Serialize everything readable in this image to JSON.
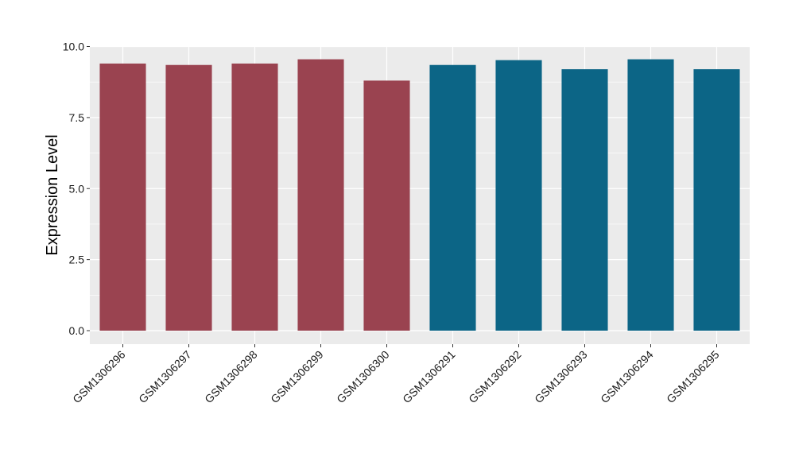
{
  "chart_data": {
    "type": "bar",
    "title": "",
    "xlabel": "",
    "ylabel": "Expression Level",
    "ylim": [
      0,
      10
    ],
    "y_ticks": [
      "0.0",
      "2.5",
      "5.0",
      "7.5",
      "10.0"
    ],
    "y_tick_values": [
      0,
      2.5,
      5,
      7.5,
      10
    ],
    "grid": true,
    "legend": "none",
    "categories": [
      "GSM1306296",
      "GSM1306297",
      "GSM1306298",
      "GSM1306299",
      "GSM1306300",
      "GSM1306291",
      "GSM1306292",
      "GSM1306293",
      "GSM1306294",
      "GSM1306295"
    ],
    "values": [
      9.4,
      9.35,
      9.4,
      9.55,
      8.8,
      9.35,
      9.52,
      9.2,
      9.55,
      9.2
    ],
    "bar_colors": [
      "#9a4350",
      "#9a4350",
      "#9a4350",
      "#9a4350",
      "#9a4350",
      "#0c6586",
      "#0c6586",
      "#0c6586",
      "#0c6586",
      "#0c6586"
    ],
    "panel_background": "#ebebeb",
    "grid_color": "#ffffff"
  }
}
